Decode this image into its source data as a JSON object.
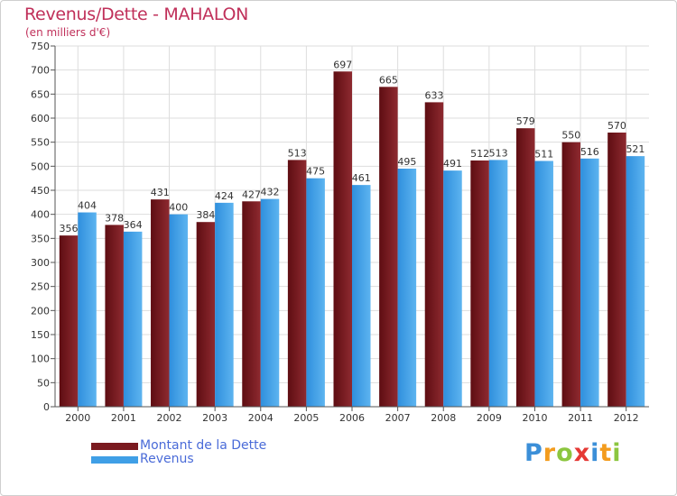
{
  "header": {
    "title": "Revenus/Dette - MAHALON",
    "subtitle": "(en milliers d'€)"
  },
  "chart_data": {
    "type": "bar",
    "categories": [
      "2000",
      "2001",
      "2002",
      "2003",
      "2004",
      "2005",
      "2006",
      "2007",
      "2008",
      "2009",
      "2010",
      "2011",
      "2012"
    ],
    "series": [
      {
        "name": "Montant de la Dette",
        "values": [
          356,
          378,
          431,
          384,
          427,
          513,
          697,
          665,
          633,
          512,
          579,
          550,
          570
        ],
        "color": "#7a1a1f"
      },
      {
        "name": "Revenus",
        "values": [
          404,
          364,
          400,
          424,
          432,
          475,
          461,
          495,
          491,
          513,
          511,
          516,
          521
        ],
        "color": "#3f9fe6"
      }
    ],
    "title": "Revenus/Dette - MAHALON",
    "ylim": [
      0,
      750
    ],
    "yticks": [
      0,
      50,
      100,
      150,
      200,
      250,
      300,
      350,
      400,
      450,
      500,
      550,
      600,
      650,
      700,
      750
    ],
    "grid": true,
    "legend_position": "bottom-left"
  },
  "legend": {
    "items": [
      {
        "label": "Montant de la Dette",
        "color": "#7a1a1f"
      },
      {
        "label": "Revenus",
        "color": "#3f9fe6"
      }
    ]
  },
  "logo": {
    "letters": [
      "P",
      "r",
      "o",
      "x",
      "i",
      "t",
      "i"
    ],
    "colors": [
      "#3b8fd8",
      "#f39c1e",
      "#8cc63f",
      "#e53935",
      "#3b8fd8",
      "#f39c1e",
      "#8cc63f"
    ]
  }
}
